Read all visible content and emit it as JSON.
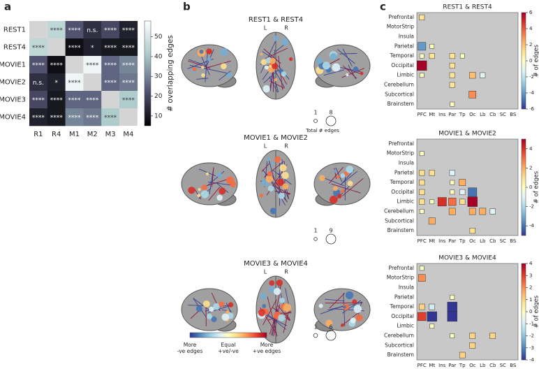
{
  "panel_labels": [
    "a",
    "b",
    "c"
  ],
  "brain_panel": {
    "rows": [
      {
        "title": "REST1 & REST4",
        "left": "L",
        "right": "R",
        "sizes": [
          1,
          8
        ],
        "size_label": "Total # edges"
      },
      {
        "title": "MOVIE1 & MOVIE2",
        "left": "L",
        "right": "R",
        "sizes": [
          1,
          9
        ]
      },
      {
        "title": "MOVIE3 & MOVIE4",
        "left": "L",
        "right": "R",
        "sizes": [
          1,
          6
        ]
      }
    ],
    "colorbar_labels": [
      [
        "More",
        "-ve edges"
      ],
      [
        "Equal",
        "+ve/-ve"
      ],
      [
        "More",
        "+ve edges"
      ]
    ]
  },
  "chart_data": [
    {
      "type": "heatmap",
      "rows": [
        "REST1",
        "REST4",
        "MOVIE1",
        "MOVIE2",
        "MOVIE3",
        "MOVIE4"
      ],
      "columns": [
        "R1",
        "R4",
        "M1",
        "M2",
        "M3",
        "M4"
      ],
      "values": [
        [
          null,
          45,
          22,
          15,
          20,
          12
        ],
        [
          45,
          null,
          8,
          12,
          10,
          10
        ],
        [
          22,
          8,
          null,
          55,
          25,
          30
        ],
        [
          15,
          12,
          55,
          null,
          25,
          28
        ],
        [
          20,
          10,
          25,
          25,
          null,
          42
        ],
        [
          12,
          10,
          30,
          28,
          42,
          null
        ]
      ],
      "annotations": [
        [
          null,
          "****",
          "****",
          "n.s.",
          "****",
          "****"
        ],
        [
          "****",
          null,
          "****",
          "*",
          "****",
          "****"
        ],
        [
          "****",
          "****",
          null,
          "****",
          "****",
          "****"
        ],
        [
          "n.s.",
          "*",
          "****",
          null,
          "****",
          "****"
        ],
        [
          "****",
          "****",
          "****",
          "****",
          null,
          "****"
        ],
        [
          "****",
          "****",
          "****",
          "****",
          "****",
          null
        ]
      ],
      "clim": [
        5,
        58
      ],
      "cticks": [
        10,
        20,
        30,
        40,
        50
      ],
      "colorbar_label": "# overlapping edges"
    },
    {
      "type": "matrix",
      "title": "REST1 & REST4",
      "rows": [
        "Prefrontal",
        "MotorStrip",
        "Insula",
        "Parietal",
        "Temporal",
        "Occipital",
        "Limbic",
        "Cerebellum",
        "Subcortical",
        "Brainstem"
      ],
      "columns": [
        "PFC",
        "Mt",
        "Ins",
        "Par",
        "Tp",
        "Oc",
        "Lb",
        "Cb",
        "SC",
        "BS"
      ],
      "values": [
        [
          1,
          null,
          null,
          null,
          null,
          null,
          null,
          null,
          null,
          null
        ],
        [
          null,
          null,
          null,
          null,
          null,
          null,
          null,
          null,
          null,
          null
        ],
        [
          null,
          null,
          null,
          null,
          null,
          null,
          null,
          null,
          null,
          null
        ],
        [
          -4,
          0,
          null,
          null,
          null,
          null,
          null,
          null,
          null,
          null
        ],
        [
          0,
          1,
          null,
          1,
          0,
          null,
          null,
          null,
          null,
          null
        ],
        [
          6,
          null,
          null,
          1,
          null,
          null,
          null,
          null,
          null,
          null
        ],
        [
          0,
          null,
          null,
          1,
          null,
          2,
          -1,
          null,
          null,
          null
        ],
        [
          null,
          null,
          null,
          1,
          null,
          null,
          null,
          null,
          null,
          null
        ],
        [
          null,
          null,
          null,
          null,
          null,
          3,
          null,
          null,
          null,
          null
        ],
        [
          null,
          null,
          null,
          0,
          null,
          null,
          null,
          null,
          null,
          null
        ]
      ],
      "clim": [
        -6,
        6
      ],
      "cticks": [
        -6,
        -4,
        -2,
        0,
        2,
        4,
        6
      ],
      "colorbar_label": "# of edges"
    },
    {
      "type": "matrix",
      "title": "MOVIE1 & MOVIE2",
      "rows": [
        "Prefrontal",
        "MotorStrip",
        "Insula",
        "Parietal",
        "Temporal",
        "Occipital",
        "Limbic",
        "Cerebellum",
        "Subcortical",
        "Brainstem"
      ],
      "columns": [
        "PFC",
        "Mt",
        "Ins",
        "Par",
        "Tp",
        "Oc",
        "Lb",
        "Cb",
        "SC",
        "BS"
      ],
      "values": [
        [
          null,
          null,
          null,
          null,
          null,
          null,
          null,
          null,
          null,
          null
        ],
        [
          0,
          null,
          null,
          null,
          null,
          null,
          null,
          null,
          null,
          null
        ],
        [
          null,
          null,
          null,
          null,
          null,
          null,
          null,
          null,
          null,
          null
        ],
        [
          1,
          1,
          null,
          -1,
          null,
          null,
          null,
          null,
          null,
          null
        ],
        [
          1,
          null,
          null,
          0,
          2,
          null,
          null,
          null,
          null,
          null
        ],
        [
          1,
          null,
          null,
          0,
          -1,
          -4,
          null,
          null,
          null,
          null
        ],
        [
          1,
          0,
          4,
          3,
          1,
          5,
          null,
          null,
          null,
          null
        ],
        [
          0,
          null,
          null,
          2,
          null,
          2,
          2,
          -1,
          null,
          null
        ],
        [
          null,
          2,
          null,
          null,
          null,
          null,
          null,
          null,
          null,
          null
        ],
        [
          null,
          null,
          null,
          null,
          null,
          1,
          null,
          null,
          null,
          null
        ]
      ],
      "clim": [
        -5,
        5
      ],
      "cticks": [
        -4,
        -2,
        0,
        2,
        4
      ],
      "colorbar_label": "# of edges"
    },
    {
      "type": "matrix",
      "title": "MOVIE3 & MOVIE4",
      "rows": [
        "Prefrontal",
        "MotorStrip",
        "Insula",
        "Parietal",
        "Temporal",
        "Occipital",
        "Limbic",
        "Cerebellum",
        "Subcortical",
        "Brainstem"
      ],
      "columns": [
        "PFC",
        "Mt",
        "Ins",
        "Par",
        "Tp",
        "Oc",
        "Lb",
        "Cb",
        "SC",
        "BS"
      ],
      "values": [
        [
          0,
          null,
          null,
          null,
          null,
          null,
          null,
          null,
          null,
          null
        ],
        [
          2,
          null,
          null,
          null,
          null,
          null,
          null,
          null,
          null,
          null
        ],
        [
          null,
          null,
          null,
          null,
          null,
          null,
          null,
          null,
          null,
          null
        ],
        [
          null,
          null,
          null,
          0,
          null,
          null,
          null,
          null,
          null,
          null
        ],
        [
          1,
          -1,
          null,
          -4,
          null,
          null,
          null,
          null,
          null,
          null
        ],
        [
          3,
          -4,
          null,
          -4,
          null,
          null,
          null,
          null,
          null,
          null
        ],
        [
          null,
          0,
          null,
          null,
          null,
          null,
          null,
          null,
          null,
          null
        ],
        [
          null,
          null,
          null,
          0,
          null,
          1,
          null,
          1,
          null,
          null
        ],
        [
          null,
          null,
          null,
          null,
          null,
          1,
          null,
          null,
          null,
          null
        ],
        [
          null,
          null,
          null,
          null,
          1,
          null,
          null,
          null,
          null,
          null
        ]
      ],
      "clim": [
        -4,
        4
      ],
      "cticks": [
        -4,
        -3,
        -2,
        -1,
        0,
        1,
        2,
        3,
        4
      ],
      "colorbar_label": "# of edges"
    }
  ]
}
